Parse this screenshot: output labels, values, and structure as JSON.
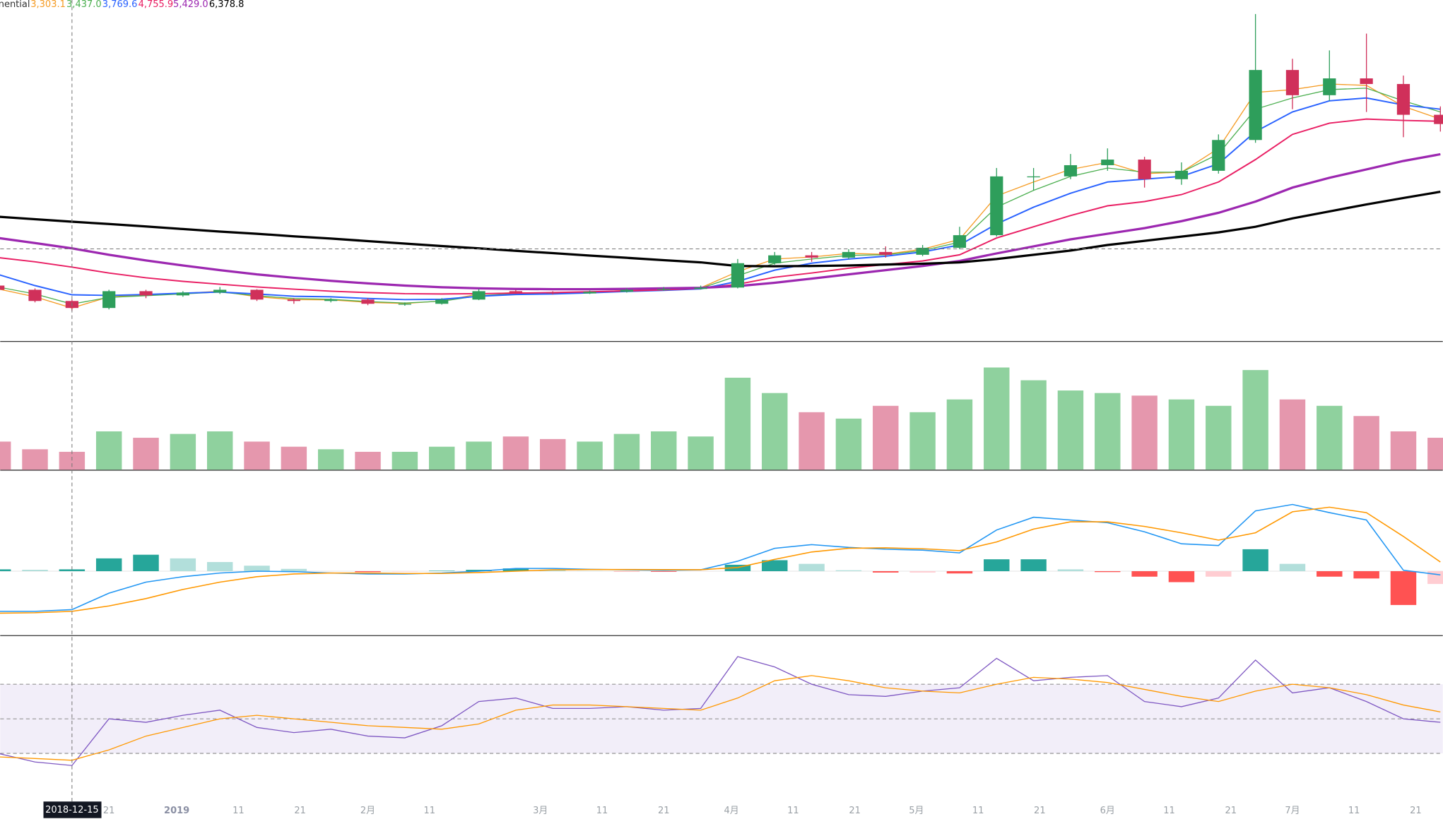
{
  "chart_data": {
    "type": "candlestick",
    "legend": {
      "label": "nential"
    },
    "x": [
      "2018-12-03",
      "2018-12-09",
      "2018-12-15",
      "2018-12-21",
      "2018-12-27",
      "2019-01-02",
      "2019-01-08",
      "2019-01-14",
      "2019-01-20",
      "2019-01-26",
      "2019-02-01",
      "2019-02-07",
      "2019-02-13",
      "2019-02-19",
      "2019-02-25",
      "2019-03-03",
      "2019-03-09",
      "2019-03-15",
      "2019-03-21",
      "2019-03-27",
      "2019-04-02",
      "2019-04-08",
      "2019-04-14",
      "2019-04-20",
      "2019-04-26",
      "2019-05-02",
      "2019-05-08",
      "2019-05-14",
      "2019-05-20",
      "2019-05-26",
      "2019-06-01",
      "2019-06-07",
      "2019-06-13",
      "2019-06-19",
      "2019-06-25",
      "2019-07-01",
      "2019-07-07",
      "2019-07-13",
      "2019-07-19",
      "2019-07-25"
    ],
    "open": [
      4100,
      3950,
      3550,
      3300,
      3900,
      3750,
      3850,
      3950,
      3600,
      3550,
      3600,
      3450,
      3450,
      3600,
      3900,
      3850,
      3820,
      3880,
      3950,
      3980,
      4030,
      4900,
      5180,
      5100,
      5300,
      5200,
      5450,
      5900,
      8000,
      8000,
      8400,
      8600,
      7900,
      8200,
      9300,
      11800,
      10900,
      11500,
      11300,
      10200
    ],
    "high": [
      4200,
      4000,
      3600,
      3950,
      3950,
      3900,
      4050,
      3970,
      3650,
      3650,
      3650,
      3500,
      3650,
      3980,
      3950,
      3900,
      3920,
      4000,
      4050,
      4100,
      5050,
      5300,
      5300,
      5400,
      5500,
      5550,
      6200,
      8300,
      8300,
      8800,
      9000,
      8700,
      8500,
      9500,
      13800,
      12200,
      12500,
      13100,
      11600,
      10500
    ],
    "low": [
      3900,
      3500,
      3200,
      3250,
      3650,
      3700,
      3800,
      3550,
      3450,
      3500,
      3400,
      3380,
      3420,
      3580,
      3800,
      3780,
      3800,
      3850,
      3920,
      3960,
      4000,
      4850,
      4950,
      5050,
      5100,
      5150,
      5400,
      5850,
      7500,
      7900,
      8200,
      7600,
      7700,
      8100,
      9200,
      10400,
      10700,
      10300,
      9400,
      9600
    ],
    "close": [
      3950,
      3550,
      3300,
      3900,
      3750,
      3850,
      3950,
      3600,
      3550,
      3600,
      3450,
      3450,
      3600,
      3900,
      3850,
      3820,
      3880,
      3950,
      3980,
      4030,
      4900,
      5180,
      5100,
      5300,
      5200,
      5450,
      5900,
      8000,
      8000,
      8400,
      8600,
      7900,
      8200,
      9300,
      11800,
      10900,
      11500,
      11300,
      10200,
      9870
    ],
    "up_color": "#2e9e5b",
    "down_color": "#d0305a",
    "ylim": [
      2120,
      14300
    ],
    "series": [
      {
        "color": "#f59b23",
        "width": 1,
        "crosshair_value": {
          "value": 3303.1,
          "label": "3,303.1"
        },
        "values": [
          3980,
          3700,
          3300,
          3700,
          3760,
          3820,
          3900,
          3700,
          3600,
          3590,
          3500,
          3460,
          3550,
          3800,
          3850,
          3830,
          3870,
          3930,
          3970,
          4020,
          4600,
          5050,
          5120,
          5250,
          5220,
          5400,
          5750,
          7300,
          7800,
          8250,
          8500,
          8100,
          8150,
          9000,
          11000,
          11100,
          11300,
          11250,
          10500,
          10050
        ]
      },
      {
        "color": "#4caf50",
        "width": 1,
        "crosshair_value": {
          "value": 3437.0,
          "label": "3,437.0"
        },
        "values": [
          4050,
          3800,
          3440,
          3680,
          3740,
          3800,
          3870,
          3740,
          3640,
          3610,
          3530,
          3480,
          3540,
          3740,
          3810,
          3820,
          3860,
          3910,
          3950,
          4000,
          4450,
          4900,
          5050,
          5180,
          5200,
          5350,
          5650,
          6900,
          7500,
          8000,
          8300,
          8150,
          8150,
          8800,
          10400,
          10800,
          11100,
          11150,
          10700,
          10300
        ]
      },
      {
        "color": "#2962ff",
        "width": 1.5,
        "crosshair_value": {
          "value": 3769.6,
          "label": "3,769.6"
        },
        "values": [
          4500,
          4100,
          3770,
          3750,
          3780,
          3830,
          3870,
          3800,
          3720,
          3700,
          3640,
          3600,
          3610,
          3720,
          3780,
          3800,
          3840,
          3890,
          3930,
          3980,
          4250,
          4650,
          4900,
          5050,
          5150,
          5300,
          5550,
          6300,
          6900,
          7400,
          7800,
          7900,
          8000,
          8450,
          9600,
          10300,
          10700,
          10800,
          10550,
          10400
        ]
      },
      {
        "color": "#e91e63",
        "width": 1.5,
        "crosshair_value": {
          "value": 4755.9,
          "label": "4,755.9"
        },
        "values": [
          5100,
          4950,
          4760,
          4550,
          4380,
          4250,
          4150,
          4050,
          3970,
          3900,
          3850,
          3810,
          3800,
          3810,
          3830,
          3850,
          3880,
          3910,
          3950,
          4000,
          4150,
          4400,
          4550,
          4720,
          4850,
          4980,
          5200,
          5800,
          6200,
          6600,
          6950,
          7100,
          7350,
          7800,
          8600,
          9500,
          9900,
          10050,
          10000,
          9970
        ]
      },
      {
        "color": "#9c27b0",
        "width": 2.5,
        "crosshair_value": {
          "value": 5429.0,
          "label": "5,429.0"
        },
        "values": [
          5800,
          5620,
          5430,
          5200,
          5000,
          4820,
          4650,
          4500,
          4380,
          4270,
          4180,
          4100,
          4040,
          4000,
          3980,
          3970,
          3970,
          3980,
          4000,
          4020,
          4080,
          4200,
          4350,
          4500,
          4650,
          4800,
          4980,
          5250,
          5500,
          5750,
          5950,
          6150,
          6400,
          6700,
          7100,
          7600,
          7950,
          8250,
          8550,
          8790
        ]
      },
      {
        "color": "#000000",
        "width": 2.5,
        "crosshair_value": {
          "value": 6378.8,
          "label": "6,378.8"
        },
        "values": [
          6560,
          6470,
          6380,
          6300,
          6210,
          6120,
          6030,
          5950,
          5860,
          5780,
          5690,
          5600,
          5510,
          5430,
          5340,
          5260,
          5170,
          5090,
          5010,
          4930,
          4800,
          4790,
          4800,
          4820,
          4850,
          4880,
          4930,
          5050,
          5200,
          5350,
          5550,
          5700,
          5850,
          6000,
          6200,
          6500,
          6750,
          7000,
          7230,
          7450
        ]
      }
    ],
    "volume": {
      "ylim": [
        0,
        100
      ],
      "up_color": "#8fd19e",
      "down_color": "#e597ad",
      "values": [
        22,
        16,
        14,
        30,
        25,
        28,
        30,
        22,
        18,
        16,
        14,
        14,
        18,
        22,
        26,
        24,
        22,
        28,
        30,
        26,
        72,
        60,
        45,
        40,
        50,
        45,
        55,
        80,
        70,
        62,
        60,
        58,
        55,
        50,
        78,
        55,
        50,
        42,
        30,
        25
      ]
    },
    "macd": {
      "ylim": [
        -700,
        1100
      ],
      "macd": {
        "color": "#2196f3",
        "values": [
          -440,
          -440,
          -420,
          -240,
          -120,
          -60,
          -20,
          0,
          -5,
          -20,
          -30,
          -30,
          -20,
          0,
          30,
          30,
          20,
          15,
          10,
          15,
          110,
          250,
          290,
          260,
          240,
          230,
          200,
          450,
          590,
          560,
          530,
          430,
          300,
          280,
          660,
          730,
          640,
          560,
          10,
          -40
        ]
      },
      "signal": {
        "color": "#ff9800",
        "values": [
          -460,
          -455,
          -440,
          -380,
          -300,
          -200,
          -120,
          -60,
          -30,
          -20,
          -20,
          -25,
          -25,
          -15,
          0,
          15,
          18,
          18,
          17,
          16,
          40,
          130,
          210,
          250,
          255,
          245,
          225,
          320,
          460,
          540,
          540,
          490,
          420,
          340,
          420,
          650,
          700,
          640,
          380,
          100
        ]
      },
      "histogram": {
        "colors": [
          "#26a69a",
          "#b2dfdb",
          "#ffcdd2",
          "#ff5252"
        ],
        "values": [
          20,
          15,
          20,
          140,
          180,
          140,
          100,
          60,
          25,
          0,
          -10,
          -5,
          5,
          15,
          30,
          15,
          2,
          -3,
          -7,
          -1,
          70,
          120,
          80,
          10,
          -15,
          -15,
          -25,
          130,
          130,
          20,
          -10,
          -60,
          -120,
          -60,
          240,
          80,
          -60,
          -80,
          -370,
          -140
        ]
      }
    },
    "rsi": {
      "ylim": [
        0,
        100
      ],
      "levels": [
        70,
        50,
        30
      ],
      "band_color": "#7e57c2",
      "rsi": {
        "color": "#7e57c2",
        "values": [
          30,
          25,
          23,
          50,
          48,
          52,
          55,
          45,
          42,
          44,
          40,
          39,
          46,
          60,
          62,
          56,
          56,
          57,
          55,
          56,
          86,
          80,
          70,
          64,
          63,
          66,
          68,
          85,
          72,
          74,
          75,
          60,
          57,
          62,
          84,
          65,
          68,
          60,
          50,
          48
        ]
      },
      "ma": {
        "color": "#ff9800",
        "values": [
          28,
          27,
          26,
          32,
          40,
          45,
          50,
          52,
          50,
          48,
          46,
          45,
          44,
          47,
          55,
          58,
          58,
          57,
          56,
          55,
          62,
          72,
          75,
          72,
          68,
          66,
          65,
          70,
          74,
          73,
          71,
          67,
          63,
          60,
          66,
          70,
          68,
          64,
          58,
          54
        ]
      }
    },
    "crosshair": {
      "date": "2018-12-15",
      "price": 5410
    },
    "xticks": [
      {
        "value": "2018-12-21",
        "label": "21"
      },
      {
        "value": "2019-01-01",
        "label": "2019"
      },
      {
        "value": "2019-01-11",
        "label": "11"
      },
      {
        "value": "2019-01-21",
        "label": "21"
      },
      {
        "value": "2019-02-01",
        "label": "2月"
      },
      {
        "value": "2019-02-11",
        "label": "11"
      },
      {
        "value": "2019-03-01",
        "label": "3月"
      },
      {
        "value": "2019-03-11",
        "label": "11"
      },
      {
        "value": "2019-03-21",
        "label": "21"
      },
      {
        "value": "2019-04-01",
        "label": "4月"
      },
      {
        "value": "2019-04-11",
        "label": "11"
      },
      {
        "value": "2019-04-21",
        "label": "21"
      },
      {
        "value": "2019-05-01",
        "label": "5月"
      },
      {
        "value": "2019-05-11",
        "label": "11"
      },
      {
        "value": "2019-05-21",
        "label": "21"
      },
      {
        "value": "2019-06-01",
        "label": "6月"
      },
      {
        "value": "2019-06-11",
        "label": "11"
      },
      {
        "value": "2019-06-21",
        "label": "21"
      },
      {
        "value": "2019-07-01",
        "label": "7月"
      },
      {
        "value": "2019-07-11",
        "label": "11"
      },
      {
        "value": "2019-07-21",
        "label": "21"
      }
    ]
  }
}
